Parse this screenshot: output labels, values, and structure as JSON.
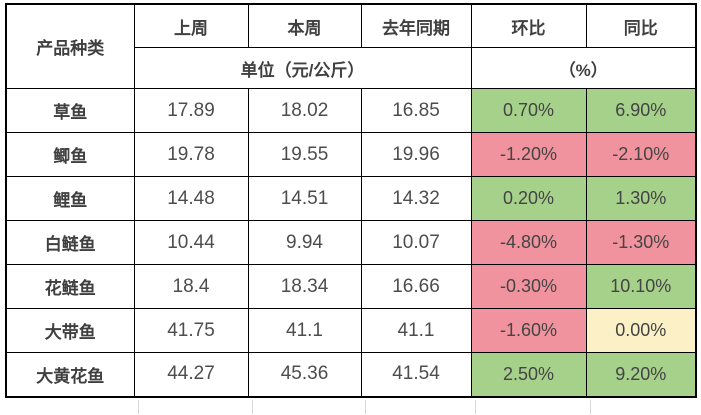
{
  "table": {
    "header": {
      "col_product": "产品种类",
      "col_last_week": "上周",
      "col_this_week": "本周",
      "col_last_year": "去年同期",
      "col_wow": "环比",
      "col_yoy": "同比",
      "unit_price": "单位（元/公斤）",
      "unit_percent": "（%）"
    },
    "colors": {
      "green": "#A6D18A",
      "red": "#F1939E",
      "yellow": "#FBF0C6"
    },
    "rows": [
      {
        "name": "草鱼",
        "last_week": "17.89",
        "this_week": "18.02",
        "last_year": "16.85",
        "wow": "0.70%",
        "wow_color": "green",
        "yoy": "6.90%",
        "yoy_color": "green"
      },
      {
        "name": "鲫鱼",
        "last_week": "19.78",
        "this_week": "19.55",
        "last_year": "19.96",
        "wow": "-1.20%",
        "wow_color": "red",
        "yoy": "-2.10%",
        "yoy_color": "red"
      },
      {
        "name": "鲤鱼",
        "last_week": "14.48",
        "this_week": "14.51",
        "last_year": "14.32",
        "wow": "0.20%",
        "wow_color": "green",
        "yoy": "1.30%",
        "yoy_color": "green"
      },
      {
        "name": "白鲢鱼",
        "last_week": "10.44",
        "this_week": "9.94",
        "last_year": "10.07",
        "wow": "-4.80%",
        "wow_color": "red",
        "yoy": "-1.30%",
        "yoy_color": "red"
      },
      {
        "name": "花鲢鱼",
        "last_week": "18.4",
        "this_week": "18.34",
        "last_year": "16.66",
        "wow": "-0.30%",
        "wow_color": "red",
        "yoy": "10.10%",
        "yoy_color": "green"
      },
      {
        "name": "大带鱼",
        "last_week": "41.75",
        "this_week": "41.1",
        "last_year": "41.1",
        "wow": "-1.60%",
        "wow_color": "red",
        "yoy": "0.00%",
        "yoy_color": "yellow"
      },
      {
        "name": "大黄花鱼",
        "last_week": "44.27",
        "this_week": "45.36",
        "last_year": "41.54",
        "wow": "2.50%",
        "wow_color": "green",
        "yoy": "9.20%",
        "yoy_color": "green"
      }
    ]
  },
  "chart_data": {
    "type": "table",
    "title": "",
    "columns": [
      "产品种类",
      "上周",
      "本周",
      "去年同期",
      "环比",
      "同比"
    ],
    "unit_rows": {
      "price_columns_unit": "单位（元/公斤）",
      "percent_columns_unit": "（%）"
    },
    "rows": [
      [
        "草鱼",
        17.89,
        18.02,
        16.85,
        "0.70%",
        "6.90%"
      ],
      [
        "鲫鱼",
        19.78,
        19.55,
        19.96,
        "-1.20%",
        "-2.10%"
      ],
      [
        "鲤鱼",
        14.48,
        14.51,
        14.32,
        "0.20%",
        "1.30%"
      ],
      [
        "白鲢鱼",
        10.44,
        9.94,
        10.07,
        "-4.80%",
        "-1.30%"
      ],
      [
        "花鲢鱼",
        18.4,
        18.34,
        16.66,
        "-0.30%",
        "10.10%"
      ],
      [
        "大带鱼",
        41.75,
        41.1,
        41.1,
        "-1.60%",
        "0.00%"
      ],
      [
        "大黄花鱼",
        44.27,
        45.36,
        41.54,
        "2.50%",
        "9.20%"
      ]
    ],
    "cell_fill_legend": {
      "green": "increase",
      "red": "decrease",
      "yellow": "no change"
    },
    "layout": {
      "grid": "black solid borders",
      "background": "white"
    }
  }
}
